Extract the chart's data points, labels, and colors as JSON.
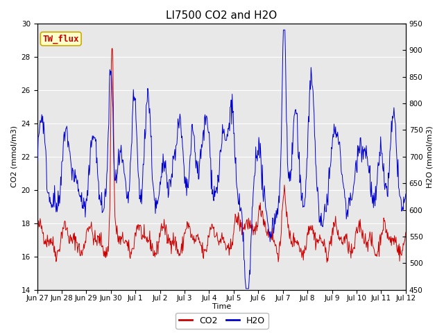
{
  "title": "LI7500 CO2 and H2O",
  "xlabel": "Time",
  "ylabel_left": "CO2 (mmol/m3)",
  "ylabel_right": "H2O (mmol/m3)",
  "ylim_left": [
    14,
    30
  ],
  "ylim_right": [
    450,
    950
  ],
  "yticks_left": [
    14,
    16,
    18,
    20,
    22,
    24,
    26,
    28,
    30
  ],
  "yticks_right": [
    450,
    500,
    550,
    600,
    650,
    700,
    750,
    800,
    850,
    900,
    950
  ],
  "x_tick_labels": [
    "Jun 27",
    "Jun 28",
    "Jun 29",
    "Jun 30",
    "Jul 1",
    "Jul 2",
    "Jul 3",
    "Jul 4",
    "Jul 5",
    "Jul 6",
    "Jul 7",
    "Jul 8",
    "Jul 9",
    "Jul 10",
    "Jul 11",
    "Jul 12"
  ],
  "co2_color": "#cc0000",
  "h2o_color": "#0000cc",
  "background_color": "#e8e8e8",
  "annotation_text": "TW_flux",
  "annotation_color": "#cc0000",
  "annotation_bg": "#ffffcc",
  "annotation_edge": "#ccaa00",
  "grid_color": "#ffffff",
  "title_fontsize": 11,
  "axis_fontsize": 8,
  "tick_fontsize": 7.5,
  "legend_fontsize": 9
}
